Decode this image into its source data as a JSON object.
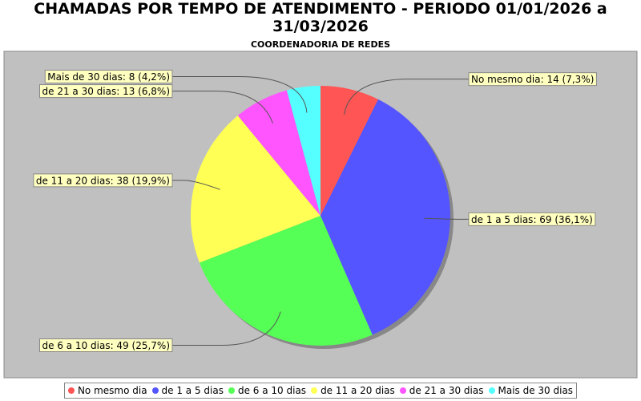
{
  "chart_data": {
    "type": "pie",
    "title": "CHAMADAS POR TEMPO DE ATENDIMENTO - PERIODO 01/01/2026 a 31/03/2026",
    "subtitle": "COORDENADORIA DE REDES",
    "categories": [
      "No mesmo dia",
      "de 1 a 5 dias",
      "de 6 a 10 dias",
      "de 11 a 20 dias",
      "de 21 a 30 dias",
      "Mais de 30 dias"
    ],
    "values": [
      14,
      69,
      49,
      38,
      13,
      8
    ],
    "value_labels": [
      "No mesmo dia: 14 (7,3%)",
      "de 1 a 5 dias: 69 (36,1%)",
      "de 6 a 10 dias: 49 (25,7%)",
      "de 11 a 20 dias: 38 (19,9%)",
      "de 21 a 30 dias: 13 (6,8%)",
      "Mais de 30 dias: 8 (4,2%)"
    ],
    "colors": [
      "#ff5555",
      "#5555ff",
      "#55ff55",
      "#ffff55",
      "#ff55ff",
      "#55ffff"
    ],
    "legend": "bottom"
  }
}
